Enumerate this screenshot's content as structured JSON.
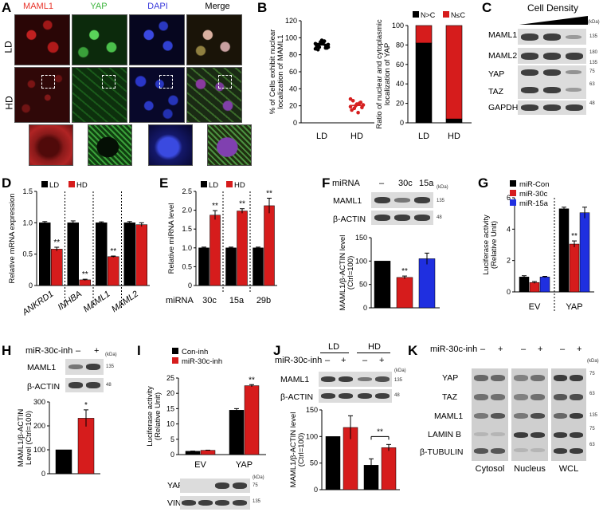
{
  "panels": {
    "A": {
      "letter": "A",
      "columns": [
        "MAML1",
        "YAP",
        "DAPI",
        "Merge"
      ],
      "column_colors": [
        "#e8332a",
        "#3cb43c",
        "#3a3adc",
        "#000000"
      ],
      "rows": [
        "LD",
        "HD"
      ]
    },
    "B": {
      "letter": "B",
      "scatter": {
        "type": "scatter",
        "ylabel": "% of Cells exhibit nuclear localization of MAML1",
        "categories": [
          "LD",
          "HD"
        ],
        "ylim": [
          0,
          120
        ],
        "yticks": [
          "0",
          "20",
          "40",
          "60",
          "80",
          "100",
          "120"
        ],
        "series": [
          {
            "values": [
              93,
              95,
              88,
              91,
              97,
              90,
              86,
              94,
              92,
              89,
              96,
              87,
              93,
              91,
              90,
              95,
              88,
              92,
              94,
              89
            ]
          },
          {
            "values": [
              28,
              20,
              24,
              15,
              22,
              18,
              26,
              12,
              21,
              17,
              23,
              19
            ]
          }
        ],
        "colors": [
          "#000000",
          "#d62020"
        ]
      },
      "stacked": {
        "type": "bar",
        "ylabel": "Ratio of nuclear and cytoplasmic localization of YAP",
        "categories": [
          "LD",
          "HD"
        ],
        "ylim": [
          0,
          100
        ],
        "yticks": [
          "0",
          "20",
          "40",
          "60",
          "80",
          "100"
        ],
        "series": [
          {
            "name": "N>C",
            "values": [
              82,
              4
            ],
            "color": "#000000"
          },
          {
            "name": "N≤C",
            "values": [
              18,
              96
            ],
            "color": "#d61c1c"
          }
        ]
      }
    },
    "C": {
      "letter": "C",
      "header": "Cell Density",
      "unit": "(kDa)",
      "bands": [
        "MAML1",
        "MAML2",
        "YAP",
        "TAZ",
        "GAPDH"
      ],
      "markers": [
        "135",
        "180",
        "135",
        "75",
        "63",
        "48"
      ]
    },
    "D": {
      "letter": "D",
      "type": "bar",
      "ylabel": "Relative mRNA expression",
      "legend": [
        "LD",
        "HD"
      ],
      "categories": [
        "ANKRD1",
        "INHBA",
        "MAML1",
        "MAML2"
      ],
      "ylim": [
        0,
        1.5
      ],
      "yticks": [
        "0",
        "0.5",
        "1.0",
        "1.5"
      ],
      "series": [
        {
          "name": "LD",
          "values": [
            1.0,
            1.0,
            1.0,
            1.0
          ],
          "err": [
            0.02,
            0.03,
            0.015,
            0.02
          ]
        },
        {
          "name": "HD",
          "values": [
            0.58,
            0.09,
            0.46,
            0.97
          ],
          "err": [
            0.03,
            0.01,
            0.01,
            0.03
          ]
        }
      ],
      "sig": [
        "**",
        "**",
        "**",
        ""
      ]
    },
    "E": {
      "letter": "E",
      "type": "bar",
      "ylabel": "Relative miRNA level",
      "legend": [
        "LD",
        "HD"
      ],
      "xtitle": "miRNA",
      "categories": [
        "30c",
        "15a",
        "29b"
      ],
      "ylim": [
        0,
        2.5
      ],
      "yticks": [
        "0",
        "0.5",
        "1.0",
        "1.5",
        "2.0",
        "2.5"
      ],
      "series": [
        {
          "name": "LD",
          "values": [
            1.0,
            1.0,
            1.0
          ],
          "err": [
            0.02,
            0.02,
            0.02
          ]
        },
        {
          "name": "HD",
          "values": [
            1.87,
            1.98,
            2.12
          ],
          "err": [
            0.12,
            0.06,
            0.2
          ]
        }
      ],
      "sig": [
        "**",
        "**",
        "**"
      ]
    },
    "F": {
      "letter": "F",
      "header_label": "miRNA",
      "lanes": [
        "–",
        "30c",
        "15a"
      ],
      "unit": "(kDa)",
      "bands": [
        "MAML1",
        "β-ACTIN"
      ],
      "markers": [
        "135",
        "48"
      ],
      "type": "bar",
      "ylabel": "MAML1/β-ACTIN level (Ctrl=100)",
      "ylim": [
        0,
        150
      ],
      "yticks": [
        "0",
        "50",
        "100",
        "150"
      ],
      "values": [
        100,
        65,
        105
      ],
      "err": [
        0,
        3,
        12
      ],
      "colors": [
        "#000000",
        "#d61c1c",
        "#1f2fe0"
      ],
      "sig": [
        "",
        "**",
        ""
      ]
    },
    "G": {
      "letter": "G",
      "type": "bar",
      "ylabel": "Luciferase activity (Relative Unit)",
      "legend": [
        "miR-Con",
        "miR-30c",
        "miR-15a"
      ],
      "colors": [
        "#000000",
        "#d61c1c",
        "#1f2fe0"
      ],
      "categories": [
        "EV",
        "YAP"
      ],
      "ylim": [
        0,
        6
      ],
      "yticks": [
        "0",
        "2",
        "4",
        "6"
      ],
      "series": [
        {
          "name": "miR-Con",
          "values": [
            0.95,
            5.3
          ],
          "err": [
            0.08,
            0.1
          ]
        },
        {
          "name": "miR-30c",
          "values": [
            0.6,
            3.05
          ],
          "err": [
            0.06,
            0.2
          ]
        },
        {
          "name": "miR-15a",
          "values": [
            0.95,
            5.05
          ],
          "err": [
            0.04,
            0.35
          ]
        }
      ],
      "sig": [
        "",
        "**"
      ]
    },
    "H": {
      "letter": "H",
      "header_label": "miR-30c-inh",
      "lanes": [
        "–",
        "+"
      ],
      "unit": "(kDa)",
      "bands": [
        "MAML1",
        "β-ACTIN"
      ],
      "markers": [
        "135",
        "48"
      ],
      "type": "bar",
      "ylabel": "MAML1/β-ACTIN Level (Ctrl=100)",
      "ylim": [
        0,
        300
      ],
      "yticks": [
        "0",
        "100",
        "200",
        "300"
      ],
      "values": [
        100,
        232
      ],
      "err": [
        0,
        35
      ],
      "colors": [
        "#000000",
        "#d61c1c"
      ],
      "sig": [
        "",
        "*"
      ]
    },
    "I": {
      "letter": "I",
      "type": "bar",
      "ylabel": "Luciferase activity (Relative Unit)",
      "legend": [
        "Con-inh",
        "miR-30c-inh"
      ],
      "colors": [
        "#000000",
        "#d61c1c"
      ],
      "categories": [
        "EV",
        "YAP"
      ],
      "ylim": [
        0,
        25
      ],
      "yticks": [
        "0",
        "5",
        "10",
        "15",
        "20",
        "25"
      ],
      "series": [
        {
          "name": "Con-inh",
          "values": [
            1.1,
            14.5
          ],
          "err": [
            0.05,
            0.5
          ]
        },
        {
          "name": "miR-30c-inh",
          "values": [
            1.4,
            22.5
          ],
          "err": [
            0.05,
            0.35
          ]
        }
      ],
      "sig": [
        "",
        "**"
      ],
      "unit": "(kDa)",
      "bands": [
        "YAP(Flag)",
        "VINCULIN"
      ],
      "markers": [
        "75",
        "135"
      ]
    },
    "J": {
      "letter": "J",
      "groups": [
        "LD",
        "HD"
      ],
      "header_label": "miR-30c-inh",
      "lanes": [
        "–",
        "+",
        "–",
        "+"
      ],
      "unit": "(kDa)",
      "bands": [
        "MAML1",
        "β-ACTIN"
      ],
      "markers": [
        "135",
        "48"
      ],
      "type": "bar",
      "ylabel": "MAML1/β-ACTIN level (Ctrl=100)",
      "ylim": [
        0,
        150
      ],
      "yticks": [
        "0",
        "50",
        "100",
        "150"
      ],
      "values": [
        100,
        117,
        46,
        79
      ],
      "err": [
        0,
        22,
        12,
        6
      ],
      "colors": [
        "#000000",
        "#d61c1c",
        "#000000",
        "#d61c1c"
      ],
      "sig_label": "**"
    },
    "K": {
      "letter": "K",
      "header_label": "miR-30c-inh",
      "lanes": [
        "–",
        "+",
        "–",
        "+",
        "–",
        "+"
      ],
      "unit": "(kDa)",
      "bands": [
        "YAP",
        "TAZ",
        "MAML1",
        "LAMIN B",
        "β-TUBULIN"
      ],
      "markers": [
        "75",
        "63",
        "135",
        "75",
        "63"
      ],
      "fractions": [
        "Cytosol",
        "Nucleus",
        "WCL"
      ]
    }
  }
}
